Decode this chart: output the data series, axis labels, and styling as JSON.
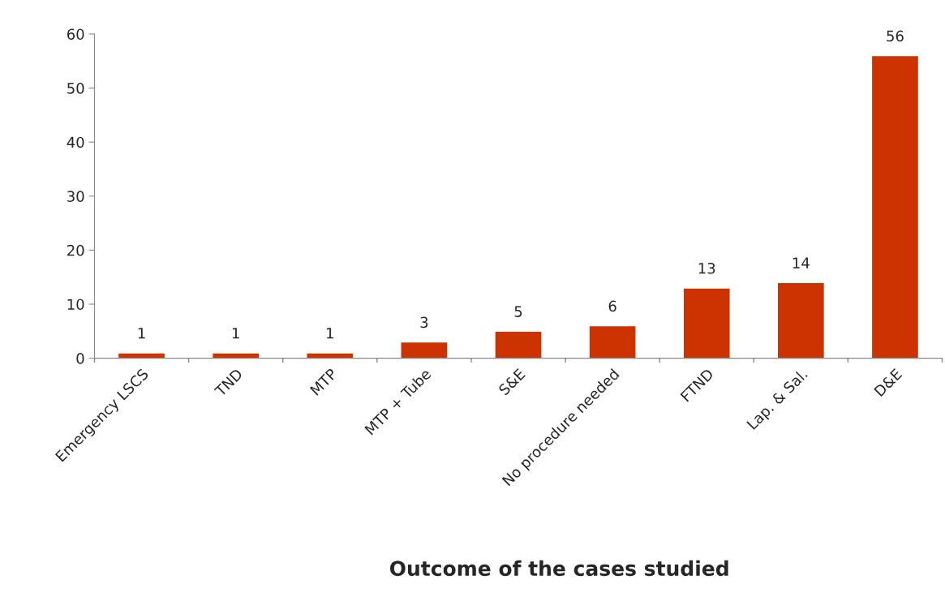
{
  "chart_data": {
    "type": "bar",
    "xlabel": "Outcome of the cases studied",
    "categories": [
      "Emergency LSCS",
      "TND",
      "MTP",
      "MTP + Tube",
      "S&E",
      "No procedure needed",
      "FTND",
      "Lap. & Sal.",
      "D&E"
    ],
    "values": [
      1,
      1,
      1,
      3,
      5,
      6,
      13,
      14,
      56
    ],
    "color": "#cc3300",
    "ylim": [
      0,
      60
    ],
    "yticks": [
      0,
      10,
      20,
      30,
      40,
      50,
      60
    ],
    "data_labels": true,
    "grid": false,
    "legend": false
  }
}
